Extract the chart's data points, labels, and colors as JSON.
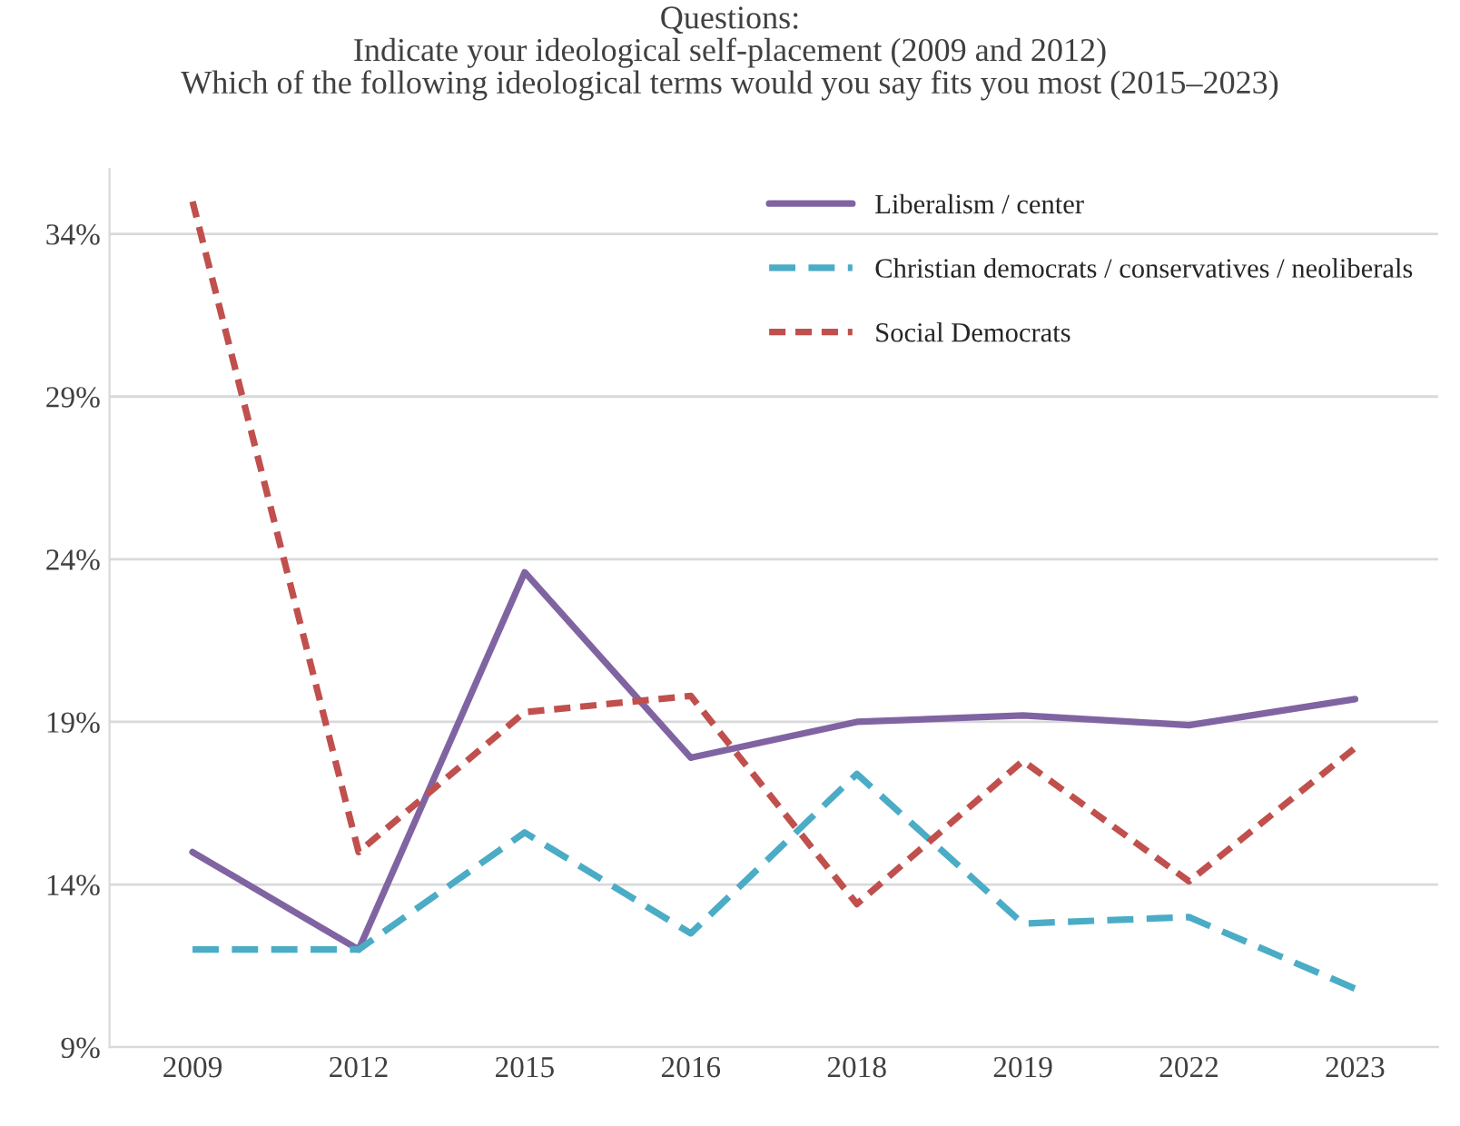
{
  "chart_data": {
    "type": "line",
    "subtitle": "Questions:\nIndicate your ideological self-placement (2009 and 2012)\nWhich of the following ideological terms would you say fits you most (2015–2023)",
    "categories": [
      "2009",
      "2012",
      "2015",
      "2016",
      "2018",
      "2019",
      "2022",
      "2023"
    ],
    "series": [
      {
        "name": "Liberalism / center",
        "color": "#8064a2",
        "line_style": "solid",
        "values": [
          15.0,
          12.0,
          23.6,
          17.9,
          19.0,
          19.2,
          18.9,
          19.7
        ]
      },
      {
        "name": "Christian democrats / conservatives / neoliberals",
        "color": "#4bacc6",
        "line_style": "dashed",
        "values": [
          12.0,
          12.0,
          15.6,
          12.5,
          17.4,
          12.8,
          13.0,
          10.8
        ]
      },
      {
        "name": "Social Democrats",
        "color": "#c0504d",
        "line_style": "dotted",
        "values": [
          35.0,
          15.0,
          19.3,
          19.8,
          13.4,
          17.8,
          14.1,
          18.2
        ]
      }
    ],
    "ylim": [
      9,
      36
    ],
    "yticks": [
      {
        "value": 9,
        "label": "9%"
      },
      {
        "value": 14,
        "label": "14%"
      },
      {
        "value": 19,
        "label": "19%"
      },
      {
        "value": 24,
        "label": "24%"
      },
      {
        "value": 29,
        "label": "29%"
      },
      {
        "value": 34,
        "label": "34%"
      }
    ],
    "grid": "y",
    "legend": "top right",
    "marker": "none"
  }
}
